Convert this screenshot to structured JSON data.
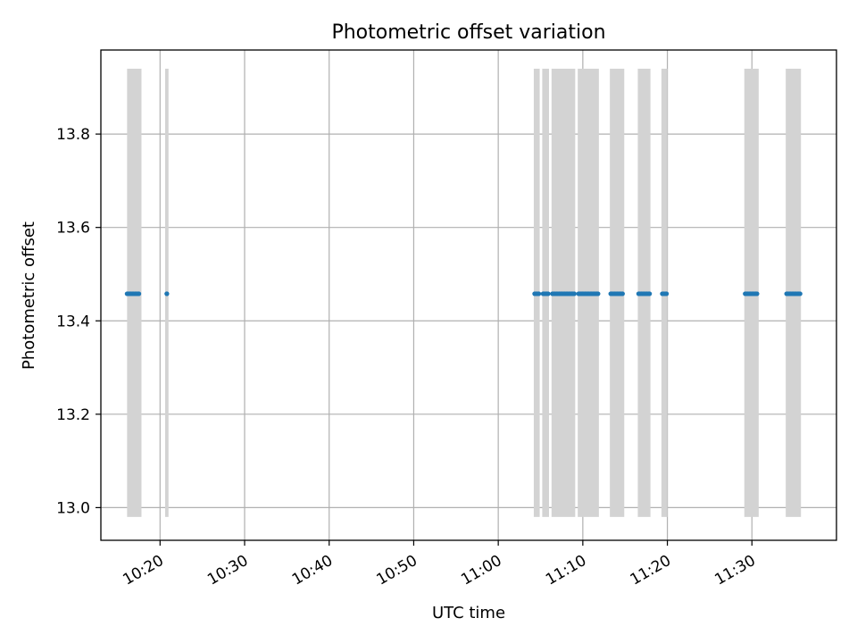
{
  "chart_data": {
    "type": "scatter",
    "title": "Photometric offset variation",
    "xlabel": "UTC time",
    "ylabel": "Photometric offset",
    "x_is_time": true,
    "xlim": [
      "10:13",
      "11:40"
    ],
    "ylim": [
      12.93,
      13.98
    ],
    "grid": true,
    "x_ticks": [
      "10:20",
      "10:30",
      "10:40",
      "10:50",
      "11:00",
      "11:10",
      "11:20",
      "11:30"
    ],
    "y_ticks": [
      13.0,
      13.2,
      13.4,
      13.6,
      13.8
    ],
    "y_tick_labels": [
      "13.0",
      "13.2",
      "13.4",
      "13.6",
      "13.8"
    ],
    "shaded_intervals": {
      "color": "#d3d3d3",
      "y_range": [
        12.98,
        13.94
      ],
      "intervals": [
        [
          "10:16.1",
          "10:17.8"
        ],
        [
          "10:20.6",
          "10:21.0"
        ],
        [
          "11:04.2",
          "11:04.9"
        ],
        [
          "11:05.2",
          "11:06.0"
        ],
        [
          "11:06.3",
          "11:09.1"
        ],
        [
          "11:09.4",
          "11:11.9"
        ],
        [
          "11:13.2",
          "11:14.9"
        ],
        [
          "11:16.5",
          "11:18.0"
        ],
        [
          "11:19.3",
          "11:20.0"
        ],
        [
          "11:29.1",
          "11:30.8"
        ],
        [
          "11:34.0",
          "11:35.8"
        ]
      ]
    },
    "series": [
      {
        "color": "#1f77b4",
        "segments": [
          {
            "x_start": "10:16.1",
            "x_end": "10:17.5",
            "y": 13.458
          },
          {
            "x_start": "10:20.8",
            "x_end": "10:20.8",
            "y": 13.458
          },
          {
            "x_start": "11:04.3",
            "x_end": "11:04.8",
            "y": 13.458
          },
          {
            "x_start": "11:05.3",
            "x_end": "11:05.9",
            "y": 13.458
          },
          {
            "x_start": "11:06.4",
            "x_end": "11:09.0",
            "y": 13.458
          },
          {
            "x_start": "11:09.5",
            "x_end": "11:11.8",
            "y": 13.458
          },
          {
            "x_start": "11:13.3",
            "x_end": "11:14.7",
            "y": 13.458
          },
          {
            "x_start": "11:16.6",
            "x_end": "11:17.9",
            "y": 13.458
          },
          {
            "x_start": "11:19.4",
            "x_end": "11:19.9",
            "y": 13.458
          },
          {
            "x_start": "11:29.2",
            "x_end": "11:30.6",
            "y": 13.458
          },
          {
            "x_start": "11:34.1",
            "x_end": "11:35.7",
            "y": 13.458
          }
        ]
      }
    ]
  }
}
